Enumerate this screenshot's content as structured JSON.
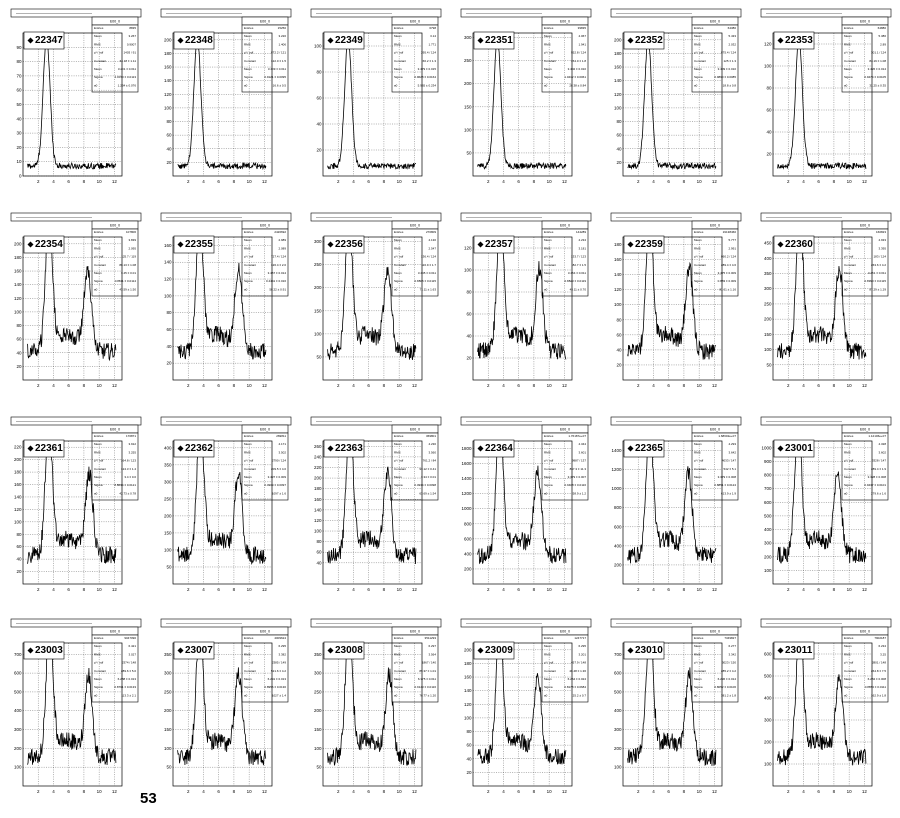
{
  "page": {
    "page_number": "53"
  },
  "common": {
    "hist_name": "E00_0",
    "stat_labels": [
      "Entries",
      "Mean",
      "RMS",
      "χ² / ndf",
      "Constant",
      "Mean",
      "Sigma",
      "a0"
    ],
    "x_ticks": [
      "2",
      "4",
      "6",
      "8",
      "10",
      "12"
    ],
    "line_color": "#000000"
  },
  "chart_data": [
    {
      "type": "line",
      "run": "22347",
      "shape": "single",
      "peak_x": 3.1,
      "y_ticks": [
        0,
        10,
        20,
        30,
        40,
        50,
        60,
        70,
        80,
        90
      ],
      "ylim": [
        0,
        100
      ],
      "xlim": [
        0,
        13
      ],
      "stats": [
        "8835",
        "3.267",
        "0.9007",
        "1403 / 91",
        "64.18 ± 1.11",
        "3.201 ± 0.011",
        "1.0070 ± 0.0113",
        "1.234 ± 0.076"
      ]
    },
    {
      "type": "line",
      "run": "22348",
      "shape": "single",
      "peak_x": 3.2,
      "y_ticks": [
        20,
        40,
        60,
        80,
        100,
        120,
        140,
        160,
        180,
        200
      ],
      "ylim": [
        0,
        210
      ],
      "xlim": [
        0,
        13
      ],
      "stats": [
        "15250",
        "3.220",
        "1.406",
        "872.2 / 121",
        "122.0 ± 1.5",
        "3.409 ± 0.011",
        "0.9121 ± 0.0095",
        "16.6 ± 0.5"
      ]
    },
    {
      "type": "line",
      "run": "22349",
      "shape": "single",
      "peak_x": 3.3,
      "y_ticks": [
        20,
        40,
        60,
        80,
        100
      ],
      "ylim": [
        0,
        110
      ],
      "xlim": [
        0,
        13
      ],
      "stats": [
        "6798",
        "3.14",
        "1.771",
        "295.4 / 124",
        "66.2 ± 1.3",
        "3.479 ± 0.015",
        "0.9628 ± 0.0164",
        "5.965 ± 0.234"
      ]
    },
    {
      "type": "line",
      "run": "22351",
      "shape": "single",
      "peak_x": 3.2,
      "y_ticks": [
        50,
        100,
        150,
        200,
        250,
        300
      ],
      "ylim": [
        0,
        310
      ],
      "xlim": [
        0,
        13
      ],
      "stats": [
        "39835",
        "4.067",
        "1.941",
        "952.8 / 124",
        "154.0 ± 1.8",
        "3.402 ± 0.010",
        "1.0412 ± 0.0061",
        "28.38 ± 0.84"
      ]
    },
    {
      "type": "line",
      "run": "22352",
      "shape": "single",
      "peak_x": 3.3,
      "y_ticks": [
        20,
        40,
        60,
        80,
        100,
        120,
        140,
        160,
        180,
        200
      ],
      "ylim": [
        0,
        210
      ],
      "xlim": [
        0,
        13
      ],
      "stats": [
        "64380",
        "5.433",
        "2.032",
        "875.4 / 124",
        "125 ± 1.3",
        "3.409 ± 0.010",
        "0.9890 ± 0.0085",
        "18.8 ± 0.8"
      ]
    },
    {
      "type": "line",
      "run": "22353",
      "shape": "single",
      "peak_x": 3.4,
      "y_ticks": [
        20,
        40,
        60,
        80,
        100,
        120
      ],
      "ylim": [
        0,
        130
      ],
      "xlim": [
        0,
        13
      ],
      "stats": [
        "64880",
        "5.386",
        "2.89",
        "301.1 / 124",
        "84.19 ± 1.08",
        "3.426 ± 0.014",
        "0.9474 ± 0.0105",
        "31.25 ± 0.35"
      ]
    },
    {
      "type": "line",
      "run": "22354",
      "shape": "double",
      "peak_x": 3.4,
      "peak2_x": 8.5,
      "y_ticks": [
        20,
        40,
        60,
        80,
        100,
        120,
        140,
        160,
        180,
        200
      ],
      "ylim": [
        0,
        210
      ],
      "xlim": [
        0,
        13
      ],
      "stats": [
        "107806",
        "3.839",
        "2.095",
        "125.7 / 119",
        "86.13 ± 1.08",
        "3.45 ± 0.01",
        "0.8811 ± 0.0114",
        "43.59 ± 1.50"
      ]
    },
    {
      "type": "line",
      "run": "22355",
      "shape": "double",
      "peak_x": 3.5,
      "peak2_x": 8.6,
      "y_ticks": [
        20,
        40,
        60,
        80,
        100,
        120,
        140,
        160
      ],
      "ylim": [
        0,
        170
      ],
      "xlim": [
        0,
        13
      ],
      "stats": [
        "2426692",
        "2.989",
        "2.089",
        "727.4 / 124",
        "126.4 ± 2.0",
        "3.457 ± 0.014",
        "0.4441 ± 0.016",
        "58.22 ± 0.91"
      ]
    },
    {
      "type": "line",
      "run": "22356",
      "shape": "double",
      "peak_x": 3.4,
      "peak2_x": 8.5,
      "y_ticks": [
        50,
        100,
        150,
        200,
        250,
        300
      ],
      "ylim": [
        0,
        310
      ],
      "xlim": [
        0,
        13
      ],
      "stats": [
        "270809",
        "4.130",
        "2.547",
        "136.4 / 124",
        "116.9 ± 1.7",
        "3.445 ± 0.011",
        "0.8805 ± 0.0115",
        "71.11 ± 1.63"
      ]
    },
    {
      "type": "line",
      "run": "22357",
      "shape": "double",
      "peak_x": 3.6,
      "peak2_x": 8.7,
      "y_ticks": [
        20,
        40,
        60,
        80,
        100,
        120
      ],
      "ylim": [
        0,
        130
      ],
      "xlim": [
        0,
        13
      ],
      "stats": [
        "144289",
        "4.234",
        "3.181",
        "133.7 / 123",
        "82.7 ± 1.5",
        "3.454 ± 0.011",
        "0.8823 ± 0.0119",
        "45.11 ± 0.70"
      ]
    },
    {
      "type": "line",
      "run": "22359",
      "shape": "double",
      "peak_x": 3.5,
      "peak2_x": 8.7,
      "y_ticks": [
        20,
        40,
        60,
        80,
        100,
        120,
        140,
        160,
        180
      ],
      "ylim": [
        0,
        190
      ],
      "xlim": [
        0,
        13
      ],
      "stats": [
        "19138460",
        "5.777",
        "2.991",
        "860.2 / 124",
        "289.4 ± 4.6",
        "3.475 ± 0.009",
        "0.883 ± 0.009",
        "81.61 ± 1.16"
      ]
    },
    {
      "type": "line",
      "run": "22360",
      "shape": "double",
      "peak_x": 3.5,
      "peak2_x": 8.7,
      "y_ticks": [
        50,
        100,
        150,
        200,
        250,
        300,
        350,
        400,
        450
      ],
      "ylim": [
        0,
        470
      ],
      "xlim": [
        0,
        13
      ],
      "stats": [
        "160823",
        "4.933",
        "3.395",
        "183 / 124",
        "263.6 ± 4.2",
        "3.451 ± 0.011",
        "0.8990 ± 0.0115",
        "87.29 ± 1.29"
      ]
    },
    {
      "type": "line",
      "run": "22361",
      "shape": "double",
      "peak_x": 3.4,
      "peak2_x": 8.7,
      "y_ticks": [
        20,
        40,
        60,
        80,
        100,
        120,
        140,
        160,
        180,
        200,
        220
      ],
      "ylim": [
        0,
        230
      ],
      "xlim": [
        0,
        13
      ],
      "stats": [
        "170871",
        "3.912",
        "3.255",
        "164.8 / 123",
        "124.3 ± 1.4",
        "3.4 ± 0.0",
        "0.8644 ± 0.0121",
        "42.73 ± 0.78"
      ]
    },
    {
      "type": "line",
      "run": "22362",
      "shape": "double",
      "peak_x": 3.6,
      "peak2_x": 8.6,
      "y_ticks": [
        50,
        100,
        150,
        200,
        250,
        300,
        350,
        400
      ],
      "ylim": [
        0,
        420
      ],
      "xlim": [
        0,
        13
      ],
      "stats": [
        "269811",
        "4.171",
        "3.502",
        "2790 / 124",
        "209.5 ± 4.0",
        "3.437 ± 0.009",
        "0.4909 ± 0.0097",
        "1097 ± 1.6"
      ]
    },
    {
      "type": "line",
      "run": "22363",
      "shape": "double",
      "peak_x": 3.5,
      "peak2_x": 8.5,
      "y_ticks": [
        40,
        60,
        80,
        100,
        120,
        140,
        160,
        180,
        200,
        220,
        240,
        260
      ],
      "ylim": [
        0,
        270
      ],
      "xlim": [
        0,
        13
      ],
      "stats": [
        "369801",
        "4.230",
        "3.560",
        "761.2 / 84",
        "93.12 ± 0.41",
        "3.34 ± 0.01",
        "0.4934 ± 0.0098",
        "63.69 ± 1.54"
      ]
    },
    {
      "type": "line",
      "run": "22364",
      "shape": "double",
      "peak_x": 3.5,
      "peak2_x": 8.5,
      "y_ticks": [
        200,
        400,
        600,
        800,
        1000,
        1200,
        1400,
        1600,
        1800
      ],
      "ylim": [
        0,
        1900
      ],
      "xlim": [
        0,
        13
      ],
      "stats": [
        "1.76187e+07",
        "4.344",
        "3.601",
        "9987 / 137",
        "867.3 ± 11.3",
        "3.379 ± 0.007",
        "0.9408 ± 0.0116",
        "58.9 ± 1.2"
      ]
    },
    {
      "type": "line",
      "run": "22365",
      "shape": "double",
      "peak_x": 3.5,
      "peak2_x": 8.6,
      "y_ticks": [
        200,
        400,
        600,
        800,
        1000,
        1200,
        1400
      ],
      "ylim": [
        0,
        1500
      ],
      "xlim": [
        0,
        13
      ],
      "stats": [
        "1.68602e+07",
        "4.293",
        "3.642",
        "4033 / 147",
        "542 ± 5.1",
        "3.379 ± 0.008",
        "0.8851 ± 0.0124",
        "613.9 ± 1.9"
      ]
    },
    {
      "type": "line",
      "run": "23001",
      "shape": "double",
      "peak_x": 3.3,
      "peak2_x": 8.5,
      "y_ticks": [
        100,
        200,
        300,
        400,
        500,
        600,
        700,
        800,
        900,
        1000
      ],
      "ylim": [
        0,
        1050
      ],
      "xlim": [
        0,
        13
      ],
      "stats": [
        "1.12106e+07",
        "4.328",
        "3.602",
        "3328 / 147",
        "289.4 ± 1.9",
        "3.328 ± 0.008",
        "0.9437 ± 0.0101",
        "279.6 ± 1.6"
      ]
    },
    {
      "type": "line",
      "run": "23003",
      "shape": "double",
      "peak_x": 3.5,
      "peak2_x": 8.6,
      "y_ticks": [
        100,
        200,
        300,
        400,
        500,
        600,
        700
      ],
      "ylim": [
        0,
        760
      ],
      "xlim": [
        0,
        13
      ],
      "stats": [
        "9047090",
        "6.421",
        "3.027",
        "2374 / 148",
        "289.6 ± 5.0",
        "6.288 ± 0.013",
        "0.8791 ± 0.0133",
        "113.3 ± 2.1"
      ]
    },
    {
      "type": "line",
      "run": "23007",
      "shape": "double",
      "peak_x": 3.5,
      "peak2_x": 8.6,
      "y_ticks": [
        50,
        100,
        150,
        200,
        250,
        300,
        350
      ],
      "ylim": [
        0,
        380
      ],
      "xlim": [
        0,
        13
      ],
      "stats": [
        "4009624",
        "6.295",
        "3.382",
        "2385 / 149",
        "521.6 ± 4.2",
        "6.291 ± 0.013",
        "0.8956 ± 0.0130",
        "1027 ± 1.4"
      ]
    },
    {
      "type": "line",
      "run": "23008",
      "shape": "double",
      "peak_x": 3.4,
      "peak2_x": 8.7,
      "y_ticks": [
        50,
        100,
        150,
        200,
        250,
        300,
        350
      ],
      "ylim": [
        0,
        380
      ],
      "xlim": [
        0,
        13
      ],
      "stats": [
        "3511293",
        "6.297",
        "3.564",
        "1867 / 140",
        "89.37 ± 1.01",
        "6.375 ± 0.011",
        "0.9143 ± 0.0116",
        "70.77 ± 1.20"
      ]
    },
    {
      "type": "line",
      "run": "23009",
      "shape": "double",
      "peak_x": 3.5,
      "peak2_x": 8.5,
      "y_ticks": [
        20,
        40,
        60,
        80,
        100,
        120,
        140,
        160,
        180,
        200
      ],
      "ylim": [
        0,
        210
      ],
      "xlim": [
        0,
        13
      ],
      "stats": [
        "1247717",
        "6.295",
        "3.201",
        "457.9 / 148",
        "46.48 ± 1.36",
        "6.264 ± 0.024",
        "0.8178 ± 0.0684",
        "25.2 ± 0.7"
      ]
    },
    {
      "type": "line",
      "run": "23010",
      "shape": "double",
      "peak_x": 3.5,
      "peak2_x": 8.7,
      "y_ticks": [
        100,
        200,
        300,
        400,
        500,
        600,
        700
      ],
      "ylim": [
        0,
        760
      ],
      "xlim": [
        0,
        13
      ],
      "stats": [
        "7349827",
        "6.277",
        "3.342",
        "3023 / 150",
        "285.2 ± 4.2",
        "6.236 ± 0.014",
        "0.8052 ± 0.0106",
        "381.2 ± 1.8"
      ]
    },
    {
      "type": "line",
      "run": "23011",
      "shape": "double",
      "peak_x": 3.5,
      "peak2_x": 8.7,
      "y_ticks": [
        100,
        200,
        300,
        400,
        500,
        600
      ],
      "ylim": [
        0,
        650
      ],
      "xlim": [
        0,
        13
      ],
      "stats": [
        "7902187",
        "6.234",
        "3.25",
        "2801 / 148",
        "264.8 ± 7.5",
        "6.284 ± 0.008",
        "0.8853 ± 0.0111",
        "162.9 ± 1.8"
      ]
    }
  ]
}
